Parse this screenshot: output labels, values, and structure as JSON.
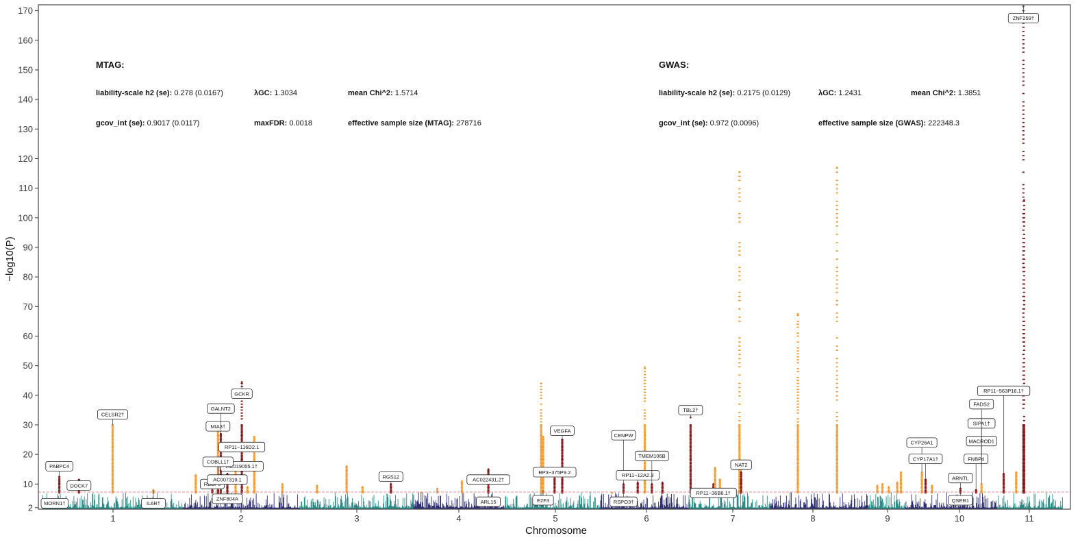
{
  "chart_data": {
    "type": "scatter",
    "subtype": "manhattan",
    "xlabel": "Chromosome",
    "ylabel": "−log10(P)",
    "ylim": [
      1.5,
      172
    ],
    "yticks": [
      2,
      10,
      20,
      30,
      40,
      50,
      60,
      70,
      80,
      90,
      100,
      110,
      120,
      130,
      140,
      150,
      160,
      170
    ],
    "chromosomes": [
      "1",
      "2",
      "3",
      "4",
      "5",
      "6",
      "7",
      "8",
      "9",
      "10",
      "11"
    ],
    "significance_line": 7.3,
    "grid": false,
    "colors": {
      "chr_odd": "#2a8a86",
      "chr_even": "#2d2f6e",
      "highlight_a": "#f39a2c",
      "highlight_b": "#7f1518",
      "sig_line": "#e06a6a"
    },
    "peaks": [
      {
        "chr": "1",
        "pos": 0.12,
        "y": 12.5,
        "color": "#7f1518"
      },
      {
        "chr": "1",
        "pos": 0.26,
        "y": 11.5,
        "color": "#7f1518"
      },
      {
        "chr": "1",
        "pos": 0.5,
        "y": 30.0,
        "color": "#f39a2c"
      },
      {
        "chr": "1",
        "pos": 0.79,
        "y": 8.0,
        "color": "#f39a2c"
      },
      {
        "chr": "1",
        "pos": 1.21,
        "y": 10.0,
        "color": "#7f1518"
      },
      {
        "chr": "1",
        "pos": 1.25,
        "y": 30.0,
        "color": "#f39a2c"
      },
      {
        "chr": "1",
        "pos": 1.27,
        "y": 27.0,
        "color": "#7f1518"
      },
      {
        "chr": "1",
        "pos": 1.42,
        "y": 44.5,
        "color": "#7f1518"
      },
      {
        "chr": "1",
        "pos": 1.46,
        "y": 9.0,
        "color": "#f39a2c"
      },
      {
        "chr": "2",
        "pos": 0.11,
        "y": 13.0,
        "color": "#f39a2c"
      },
      {
        "chr": "2",
        "pos": 0.3,
        "y": 11.5,
        "color": "#7f1518"
      },
      {
        "chr": "2",
        "pos": 0.38,
        "y": 13.5,
        "color": "#7f1518"
      },
      {
        "chr": "2",
        "pos": 0.45,
        "y": 17.0,
        "color": "#f39a2c"
      },
      {
        "chr": "2",
        "pos": 0.61,
        "y": 26.0,
        "color": "#f39a2c"
      },
      {
        "chr": "2",
        "pos": 0.85,
        "y": 10.0,
        "color": "#f39a2c"
      },
      {
        "chr": "3",
        "pos": 0.15,
        "y": 9.5,
        "color": "#f39a2c"
      },
      {
        "chr": "3",
        "pos": 0.41,
        "y": 16.0,
        "color": "#f39a2c"
      },
      {
        "chr": "3",
        "pos": 0.55,
        "y": 9.0,
        "color": "#f39a2c"
      },
      {
        "chr": "3",
        "pos": 0.8,
        "y": 10.0,
        "color": "#7f1518"
      },
      {
        "chr": "4",
        "pos": 0.08,
        "y": 7.0,
        "color": "#f39a2c"
      },
      {
        "chr": "4",
        "pos": 0.26,
        "y": 8.5,
        "color": "#f39a2c"
      },
      {
        "chr": "4",
        "pos": 0.53,
        "y": 11.0,
        "color": "#f39a2c"
      },
      {
        "chr": "4",
        "pos": 0.82,
        "y": 15.0,
        "color": "#7f1518"
      },
      {
        "chr": "5",
        "pos": 0.38,
        "y": 44.0,
        "color": "#f39a2c"
      },
      {
        "chr": "5",
        "pos": 0.4,
        "y": 26.0,
        "color": "#f39a2c"
      },
      {
        "chr": "5",
        "pos": 0.52,
        "y": 13.0,
        "color": "#7f1518"
      },
      {
        "chr": "5",
        "pos": 0.6,
        "y": 25.0,
        "color": "#7f1518"
      },
      {
        "chr": "6",
        "pos": 0.13,
        "y": 7.0,
        "color": "#f39a2c"
      },
      {
        "chr": "6",
        "pos": 0.26,
        "y": 10.0,
        "color": "#7f1518"
      },
      {
        "chr": "6",
        "pos": 0.42,
        "y": 10.5,
        "color": "#7f1518"
      },
      {
        "chr": "6",
        "pos": 0.5,
        "y": 49.5,
        "color": "#f39a2c"
      },
      {
        "chr": "6",
        "pos": 0.58,
        "y": 10.0,
        "color": "#7f1518"
      },
      {
        "chr": "6",
        "pos": 0.7,
        "y": 10.5,
        "color": "#7f1518"
      },
      {
        "chr": "7",
        "pos": 0.02,
        "y": 32.5,
        "color": "#7f1518"
      },
      {
        "chr": "7",
        "pos": 0.3,
        "y": 10.0,
        "color": "#7f1518"
      },
      {
        "chr": "7",
        "pos": 0.32,
        "y": 15.5,
        "color": "#f39a2c"
      },
      {
        "chr": "7",
        "pos": 0.38,
        "y": 11.5,
        "color": "#f39a2c"
      },
      {
        "chr": "7",
        "pos": 0.62,
        "y": 115.5,
        "color": "#f39a2c"
      },
      {
        "chr": "7",
        "pos": 0.64,
        "y": 14.0,
        "color": "#7f1518"
      },
      {
        "chr": "8",
        "pos": 0.28,
        "y": 67.5,
        "color": "#f39a2c"
      },
      {
        "chr": "8",
        "pos": 0.68,
        "y": 117.0,
        "color": "#f39a2c"
      },
      {
        "chr": "9",
        "pos": 0.24,
        "y": 9.5,
        "color": "#f39a2c"
      },
      {
        "chr": "9",
        "pos": 0.38,
        "y": 10.0,
        "color": "#f39a2c"
      },
      {
        "chr": "9",
        "pos": 0.55,
        "y": 9.0,
        "color": "#f39a2c"
      },
      {
        "chr": "9",
        "pos": 0.78,
        "y": 10.5,
        "color": "#f39a2c"
      },
      {
        "chr": "9",
        "pos": 0.88,
        "y": 14.0,
        "color": "#f39a2c"
      },
      {
        "chr": "10",
        "pos": 0.18,
        "y": 14.0,
        "color": "#f39a2c"
      },
      {
        "chr": "10",
        "pos": 0.22,
        "y": 11.5,
        "color": "#7f1518"
      },
      {
        "chr": "10",
        "pos": 0.29,
        "y": 9.5,
        "color": "#f39a2c"
      },
      {
        "chr": "10",
        "pos": 0.6,
        "y": 8.5,
        "color": "#7f1518"
      },
      {
        "chr": "10",
        "pos": 0.77,
        "y": 8.0,
        "color": "#7f1518"
      },
      {
        "chr": "10",
        "pos": 0.83,
        "y": 10.0,
        "color": "#f39a2c"
      },
      {
        "chr": "11",
        "pos": 0.1,
        "y": 13.5,
        "color": "#7f1518"
      },
      {
        "chr": "11",
        "pos": 0.29,
        "y": 14.0,
        "color": "#f39a2c"
      },
      {
        "chr": "11",
        "pos": 0.4,
        "y": 171.5,
        "color": "#7f1518"
      },
      {
        "chr": "11",
        "pos": 0.41,
        "y": 106.0,
        "color": "#7f1518"
      }
    ],
    "gene_labels": [
      {
        "text": "MORN1†",
        "chr": "1",
        "pos": 0.04,
        "y": 2.0,
        "label_y": 3.5
      },
      {
        "text": "PABPC4",
        "chr": "1",
        "pos": 0.12,
        "y": 12.5,
        "label_y": 16.0
      },
      {
        "text": "DOCK7",
        "chr": "1",
        "pos": 0.26,
        "y": 11.5,
        "label_y": 9.5
      },
      {
        "text": "CELSR2†",
        "chr": "1",
        "pos": 0.5,
        "y": 30.0,
        "label_y": 33.5
      },
      {
        "text": "IL6R†",
        "chr": "1",
        "pos": 0.79,
        "y": 8.0,
        "label_y": 3.5
      },
      {
        "text": "RBBP5",
        "chr": "1",
        "pos": 1.21,
        "y": 10.0,
        "label_y": 10.0
      },
      {
        "text": "MIA3†",
        "chr": "1",
        "pos": 1.25,
        "y": 30.0,
        "label_y": 29.5
      },
      {
        "text": "GALNT2",
        "chr": "1",
        "pos": 1.27,
        "y": 27.0,
        "label_y": 35.5
      },
      {
        "text": "RP11−116D2.1",
        "chr": "1",
        "pos": 1.42,
        "y": 23.0,
        "label_y": 22.5
      },
      {
        "text": "AC019055.1†",
        "chr": "1",
        "pos": 1.42,
        "y": 16.0,
        "label_y": 16.0
      },
      {
        "text": "GCKR",
        "chr": "1",
        "pos": 1.42,
        "y": 44.5,
        "label_y": 40.5
      },
      {
        "text": "COBLL1†",
        "chr": "2",
        "pos": 0.3,
        "y": 11.5,
        "label_y": 17.5
      },
      {
        "text": "AC007319.1",
        "chr": "2",
        "pos": 0.38,
        "y": 13.5,
        "label_y": 11.5
      },
      {
        "text": "ZNF804A",
        "chr": "2",
        "pos": 0.38,
        "y": 9.0,
        "label_y": 5.0
      },
      {
        "text": "RGS12",
        "chr": "3",
        "pos": 0.8,
        "y": 10.0,
        "label_y": 12.5
      },
      {
        "text": "AC022431.2†",
        "chr": "4",
        "pos": 0.82,
        "y": 15.0,
        "label_y": 11.5
      },
      {
        "text": "ARL15",
        "chr": "4",
        "pos": 0.82,
        "y": 7.0,
        "label_y": 4.0
      },
      {
        "text": "VEGFA",
        "chr": "5",
        "pos": 0.6,
        "y": 25.0,
        "label_y": 28.0
      },
      {
        "text": "RP3−375P9.2",
        "chr": "5",
        "pos": 0.52,
        "y": 13.0,
        "label_y": 14.0
      },
      {
        "text": "E2F3",
        "chr": "5",
        "pos": 0.4,
        "y": 8.0,
        "label_y": 4.5
      },
      {
        "text": "CENPW",
        "chr": "6",
        "pos": 0.26,
        "y": 10.0,
        "label_y": 26.5
      },
      {
        "text": "RP11−12A2.3",
        "chr": "6",
        "pos": 0.42,
        "y": 10.5,
        "label_y": 13.0
      },
      {
        "text": "RSPO3†",
        "chr": "6",
        "pos": 0.26,
        "y": 7.0,
        "label_y": 4.0
      },
      {
        "text": "TMEM106B",
        "chr": "6",
        "pos": 0.58,
        "y": 10.0,
        "label_y": 19.5
      },
      {
        "text": "TBL2†",
        "chr": "7",
        "pos": 0.02,
        "y": 32.5,
        "label_y": 35.0
      },
      {
        "text": "RP11−36B6.1†",
        "chr": "7",
        "pos": 0.3,
        "y": 10.0,
        "label_y": 7.0
      },
      {
        "text": "NAT2",
        "chr": "7",
        "pos": 0.64,
        "y": 14.0,
        "label_y": 16.5
      },
      {
        "text": "CYP26A1",
        "chr": "10",
        "pos": 0.18,
        "y": 14.0,
        "label_y": 24.0
      },
      {
        "text": "CYP17A1†",
        "chr": "10",
        "pos": 0.22,
        "y": 11.5,
        "label_y": 18.5
      },
      {
        "text": "ARNTL",
        "chr": "10",
        "pos": 0.6,
        "y": 8.5,
        "label_y": 12.0
      },
      {
        "text": "QSER1",
        "chr": "10",
        "pos": 0.6,
        "y": 7.0,
        "label_y": 4.5
      },
      {
        "text": "FNBP4",
        "chr": "10",
        "pos": 0.77,
        "y": 8.0,
        "label_y": 18.5
      },
      {
        "text": "MACROD1",
        "chr": "10",
        "pos": 0.83,
        "y": 10.0,
        "label_y": 24.5
      },
      {
        "text": "SIPA1†",
        "chr": "10",
        "pos": 0.83,
        "y": 16.0,
        "label_y": 30.5
      },
      {
        "text": "FADS2",
        "chr": "10",
        "pos": 0.83,
        "y": 20.0,
        "label_y": 37.0
      },
      {
        "text": "RP11−563P16.1†",
        "chr": "11",
        "pos": 0.1,
        "y": 13.5,
        "label_y": 41.5
      },
      {
        "text": "ZNF259†",
        "chr": "11",
        "pos": 0.4,
        "y": 171.5,
        "label_y": 167.5
      }
    ],
    "annotations": {
      "mtag": {
        "heading": "MTAG:",
        "row1": [
          {
            "key": "liability-scale h2 (se):",
            "value": "0.278 (0.0167)"
          },
          {
            "key": "λGC:",
            "value": "1.3034"
          },
          {
            "key": "mean Chi^2:",
            "value": "1.5714"
          }
        ],
        "row2": [
          {
            "key": "gcov_int (se):",
            "value": "0.9017 (0.0117)"
          },
          {
            "key": "maxFDR:",
            "value": "0.0018"
          },
          {
            "key": "effective sample size (MTAG):",
            "value": "278716"
          }
        ]
      },
      "gwas": {
        "heading": "GWAS:",
        "row1": [
          {
            "key": "liability-scale h2 (se):",
            "value": "0.2175 (0.0129)"
          },
          {
            "key": "λGC:",
            "value": "1.2431"
          },
          {
            "key": "mean Chi^2:",
            "value": "1.3851"
          }
        ],
        "row2": [
          {
            "key": "gcov_int (se):",
            "value": "0.972 (0.0096)"
          },
          {
            "key": "effective sample size (GWAS):",
            "value": "222348.3"
          }
        ]
      }
    }
  }
}
